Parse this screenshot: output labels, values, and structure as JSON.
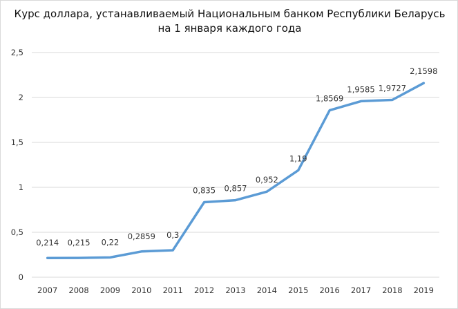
{
  "chart_data": {
    "type": "line",
    "title_lines": [
      "Курс доллара, устанавливаемый Национальным банком Республики Беларусь",
      "на 1 января каждого года"
    ],
    "categories": [
      "2007",
      "2008",
      "2009",
      "2010",
      "2011",
      "2012",
      "2013",
      "2014",
      "2015",
      "2016",
      "2017",
      "2018",
      "2019"
    ],
    "values": [
      0.214,
      0.215,
      0.22,
      0.2859,
      0.3,
      0.835,
      0.857,
      0.952,
      1.19,
      1.8569,
      1.9585,
      1.9727,
      2.1598
    ],
    "data_labels": [
      "0,214",
      "0,215",
      "0,22",
      "0,2859",
      "0,3",
      "0,835",
      "0,857",
      "0,952",
      "1,19",
      "1,8569",
      "1,9585",
      "1,9727",
      "2,1598"
    ],
    "y_ticks": [
      "0",
      "0,5",
      "1",
      "1,5",
      "2",
      "2,5"
    ],
    "ylim": [
      0,
      2.5
    ],
    "grid": true,
    "legend": "none",
    "line_color": "#5b9bd5",
    "grid_color": "#d9d9d9",
    "text_color": "#333333"
  }
}
